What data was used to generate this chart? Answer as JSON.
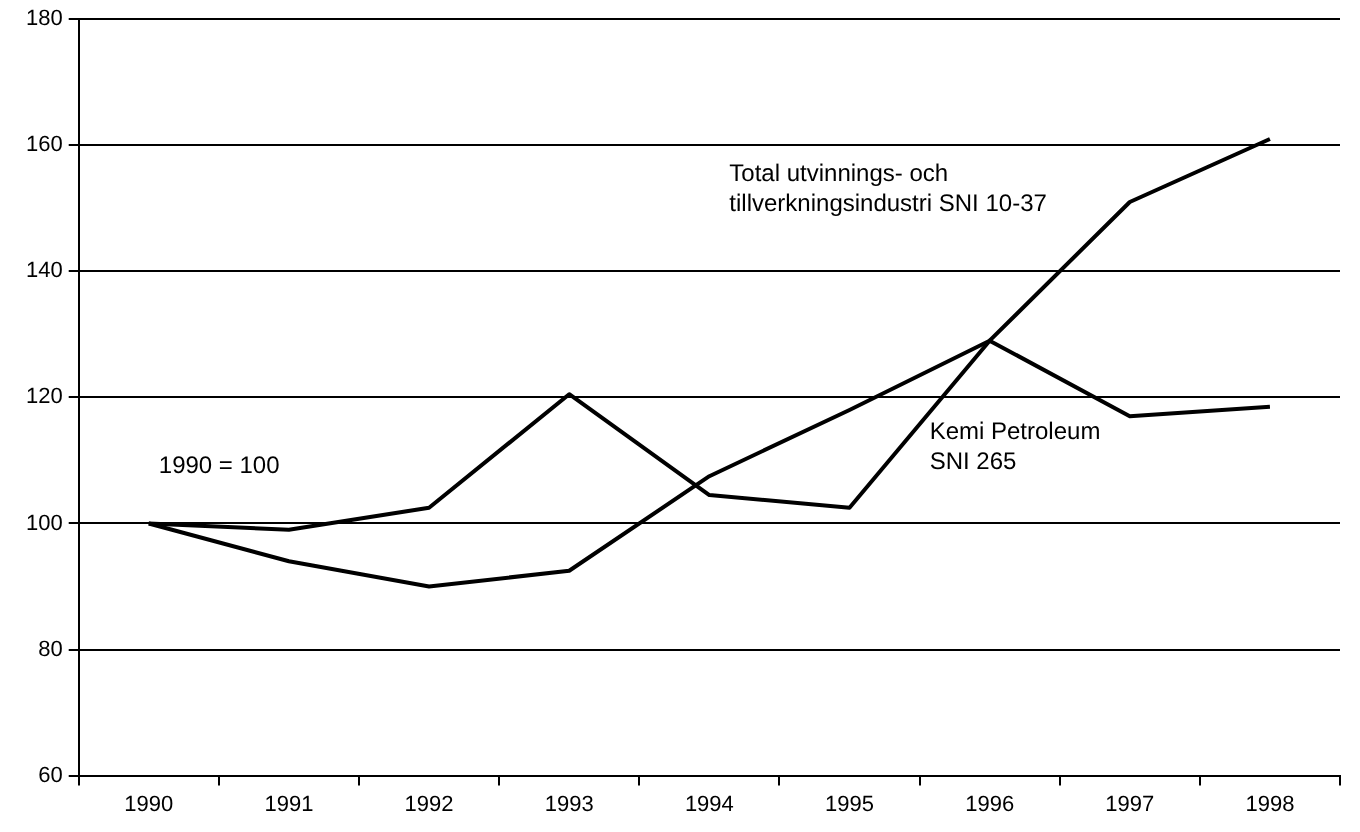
{
  "chart_data": {
    "type": "line",
    "categories": [
      "1990",
      "1991",
      "1992",
      "1993",
      "1994",
      "1995",
      "1996",
      "1997",
      "1998"
    ],
    "series": [
      {
        "name": "Total utvinnings- och tillverkningsindustri SNI 10-37",
        "color": "#000000",
        "values": [
          100,
          94,
          90,
          92.5,
          107.5,
          118,
          129,
          151,
          161
        ]
      },
      {
        "name": "Kemi Petroleum SNI 265",
        "color": "#000000",
        "values": [
          100,
          99,
          102.5,
          120.5,
          104.5,
          102.5,
          129,
          117,
          118.5
        ]
      }
    ],
    "annotations": [
      "1990 = 100"
    ],
    "ylim": [
      60,
      180
    ],
    "yticks": [
      60,
      80,
      100,
      120,
      140,
      160,
      180
    ],
    "grid": "y",
    "legend": false,
    "marker": "none",
    "line_style": "solid"
  }
}
